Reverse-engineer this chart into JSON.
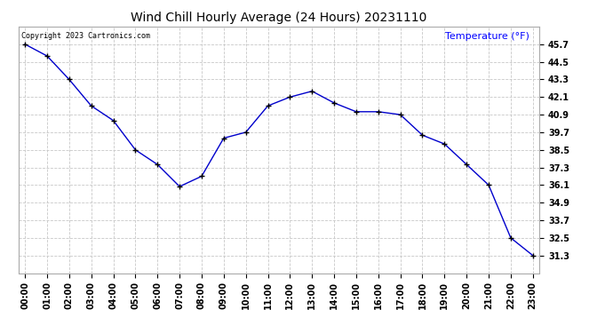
{
  "title": "Wind Chill Hourly Average (24 Hours) 20231110",
  "ylabel_text": "Temperature (°F)",
  "copyright_text": "Copyright 2023 Cartronics.com",
  "line_color": "#0000cc",
  "background_color": "#ffffff",
  "grid_color": "#c8c8c8",
  "hours": [
    "00:00",
    "01:00",
    "02:00",
    "03:00",
    "04:00",
    "05:00",
    "06:00",
    "07:00",
    "08:00",
    "09:00",
    "10:00",
    "11:00",
    "12:00",
    "13:00",
    "14:00",
    "15:00",
    "16:00",
    "17:00",
    "18:00",
    "19:00",
    "20:00",
    "21:00",
    "22:00",
    "23:00"
  ],
  "values": [
    45.7,
    44.9,
    43.3,
    41.5,
    40.5,
    38.5,
    37.5,
    36.0,
    36.7,
    39.3,
    39.7,
    41.5,
    42.1,
    42.5,
    41.7,
    41.1,
    41.1,
    40.9,
    39.5,
    38.9,
    37.5,
    36.1,
    32.5,
    31.3
  ],
  "ylim_min": 30.1,
  "ylim_max": 46.9,
  "yticks": [
    31.3,
    32.5,
    33.7,
    34.9,
    36.1,
    37.3,
    38.5,
    39.7,
    40.9,
    42.1,
    43.3,
    44.5,
    45.7
  ],
  "title_color": "#000000",
  "title_fontsize": 10,
  "label_fontsize": 8,
  "tick_fontsize": 7,
  "marker_color": "#000022"
}
